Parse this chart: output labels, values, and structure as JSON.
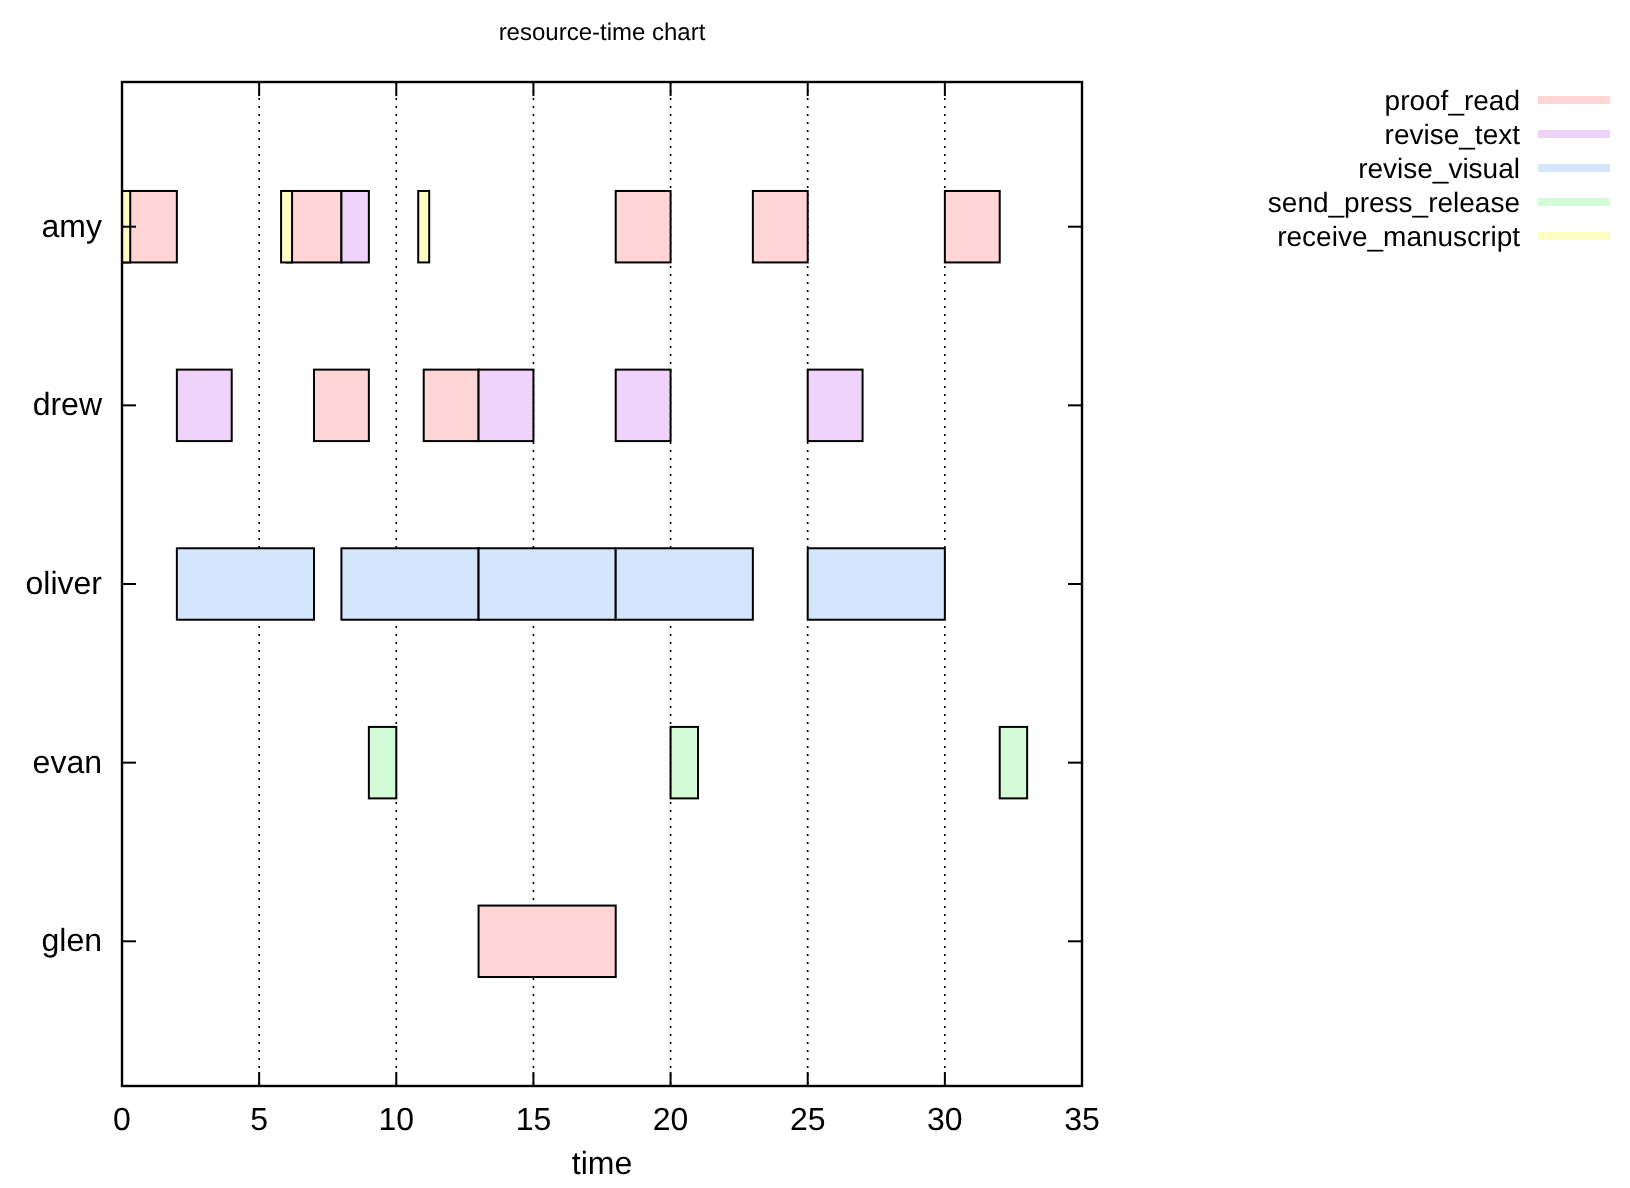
{
  "chart_data": {
    "type": "bar",
    "orientation": "horizontal",
    "title": "resource-time chart",
    "xlabel": "time",
    "categories": [
      "amy",
      "drew",
      "oliver",
      "evan",
      "glen"
    ],
    "xlim": [
      0,
      35
    ],
    "xticks": [
      0,
      5,
      10,
      15,
      20,
      25,
      30,
      35
    ],
    "grid": "x",
    "legend": "top right",
    "series": [
      {
        "name": "proof_read",
        "color": "#ffd5d5",
        "base": [
          0,
          7,
          null,
          null,
          13
        ],
        "values": [
          2,
          2,
          null,
          null,
          5
        ]
      },
      {
        "color": "#ffd5d5",
        "base": [
          6,
          11,
          null,
          null,
          null
        ],
        "values": [
          2,
          2,
          null,
          null,
          null
        ]
      },
      {
        "color": "#ffd5d5",
        "base": [
          18,
          null,
          null,
          null,
          null
        ],
        "values": [
          2,
          null,
          null,
          null,
          null
        ]
      },
      {
        "color": "#ffd5d5",
        "base": [
          23,
          null,
          null,
          null,
          null
        ],
        "values": [
          2,
          null,
          null,
          null,
          null
        ]
      },
      {
        "color": "#ffd5d5",
        "base": [
          30,
          null,
          null,
          null,
          null
        ],
        "values": [
          2,
          null,
          null,
          null,
          null
        ]
      },
      {
        "name": "revise_text",
        "color": "#f0d3fb",
        "base": [
          8,
          2,
          null,
          null,
          null
        ],
        "values": [
          1,
          2,
          null,
          null,
          null
        ]
      },
      {
        "color": "#f0d3fb",
        "base": [
          null,
          13,
          null,
          null,
          null
        ],
        "values": [
          null,
          2,
          null,
          null,
          null
        ]
      },
      {
        "color": "#f0d3fb",
        "base": [
          null,
          18,
          null,
          null,
          null
        ],
        "values": [
          null,
          2,
          null,
          null,
          null
        ]
      },
      {
        "color": "#f0d3fb",
        "base": [
          null,
          25,
          null,
          null,
          null
        ],
        "values": [
          null,
          2,
          null,
          null,
          null
        ]
      },
      {
        "name": "revise_visual",
        "color": "#d3e6fc",
        "base": [
          null,
          null,
          2,
          null,
          null
        ],
        "values": [
          null,
          null,
          5,
          null,
          null
        ]
      },
      {
        "color": "#d3e6fc",
        "base": [
          null,
          null,
          8,
          null,
          null
        ],
        "values": [
          null,
          null,
          5,
          null,
          null
        ]
      },
      {
        "color": "#d3e6fc",
        "base": [
          null,
          null,
          13,
          null,
          null
        ],
        "values": [
          null,
          null,
          5,
          null,
          null
        ]
      },
      {
        "color": "#d3e6fc",
        "base": [
          null,
          null,
          18,
          null,
          null
        ],
        "values": [
          null,
          null,
          5,
          null,
          null
        ]
      },
      {
        "color": "#d3e6fc",
        "base": [
          null,
          null,
          25,
          null,
          null
        ],
        "values": [
          null,
          null,
          5,
          null,
          null
        ]
      },
      {
        "name": "send_press_release",
        "color": "#d3fbd8",
        "base": [
          null,
          null,
          null,
          9,
          null
        ],
        "values": [
          null,
          null,
          null,
          1,
          null
        ]
      },
      {
        "color": "#d3fbd8",
        "base": [
          null,
          null,
          null,
          20,
          null
        ],
        "values": [
          null,
          null,
          null,
          1,
          null
        ]
      },
      {
        "color": "#d3fbd8",
        "base": [
          null,
          null,
          null,
          32,
          null
        ],
        "values": [
          null,
          null,
          null,
          1,
          null
        ]
      },
      {
        "name": "receive_manuscript",
        "color": "#fdfdc2",
        "base": [
          0,
          null,
          null,
          null,
          null
        ],
        "values": [
          0.3,
          null,
          null,
          null,
          null
        ]
      },
      {
        "color": "#fdfdc2",
        "base": [
          5.8,
          null,
          null,
          null,
          null
        ],
        "values": [
          0.4,
          null,
          null,
          null,
          null
        ]
      },
      {
        "color": "#fdfdc2",
        "base": [
          10.8,
          null,
          null,
          null,
          null
        ],
        "values": [
          0.4,
          null,
          null,
          null,
          null
        ]
      }
    ]
  }
}
